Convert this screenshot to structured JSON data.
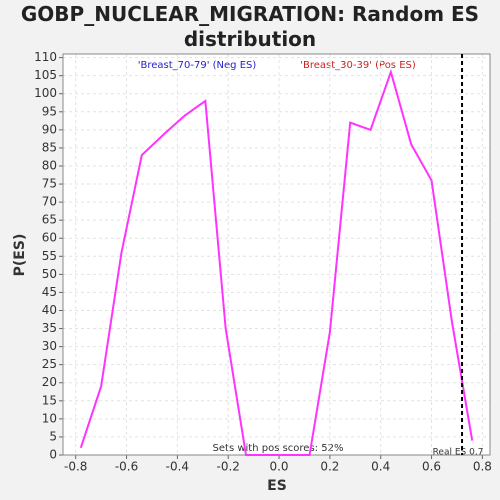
{
  "chart_data": {
    "type": "line",
    "title": "GOBP_NUCLEAR_MIGRATION: Random ES distribution",
    "x_label": "ES",
    "y_label": "P(ES)",
    "x": [
      -0.78,
      -0.7,
      -0.62,
      -0.54,
      -0.45,
      -0.37,
      -0.29,
      -0.21,
      -0.13,
      -0.05,
      0.04,
      0.12,
      0.2,
      0.28,
      0.36,
      0.44,
      0.52,
      0.6,
      0.68,
      0.76
    ],
    "series": [
      {
        "name": "P(ES)",
        "color": "#ff33ff",
        "values": [
          2,
          19,
          56,
          83,
          89,
          94,
          98,
          35,
          0,
          0,
          0,
          0,
          34,
          92,
          90,
          106,
          86,
          76,
          37,
          4
        ]
      }
    ],
    "xlim": [
      -0.85,
      0.83
    ],
    "ylim": [
      0,
      111
    ],
    "xticks": [
      -0.8,
      -0.6,
      -0.4,
      -0.2,
      {
        "value": 0,
        "label": "0.0"
      },
      0.2,
      0.4,
      0.6,
      0.8
    ],
    "yticks": [
      0,
      5,
      10,
      15,
      20,
      25,
      30,
      35,
      40,
      45,
      50,
      55,
      60,
      65,
      70,
      75,
      80,
      85,
      90,
      95,
      100,
      105,
      110
    ],
    "grid": true,
    "real_es": 0.72,
    "annotations": {
      "neg": "'Breast_70-79' (Neg ES)",
      "pos": "'Breast_30-39' (Pos ES)",
      "sets": "Sets with pos scores: 52%",
      "real": "Real ES 0.7"
    }
  }
}
